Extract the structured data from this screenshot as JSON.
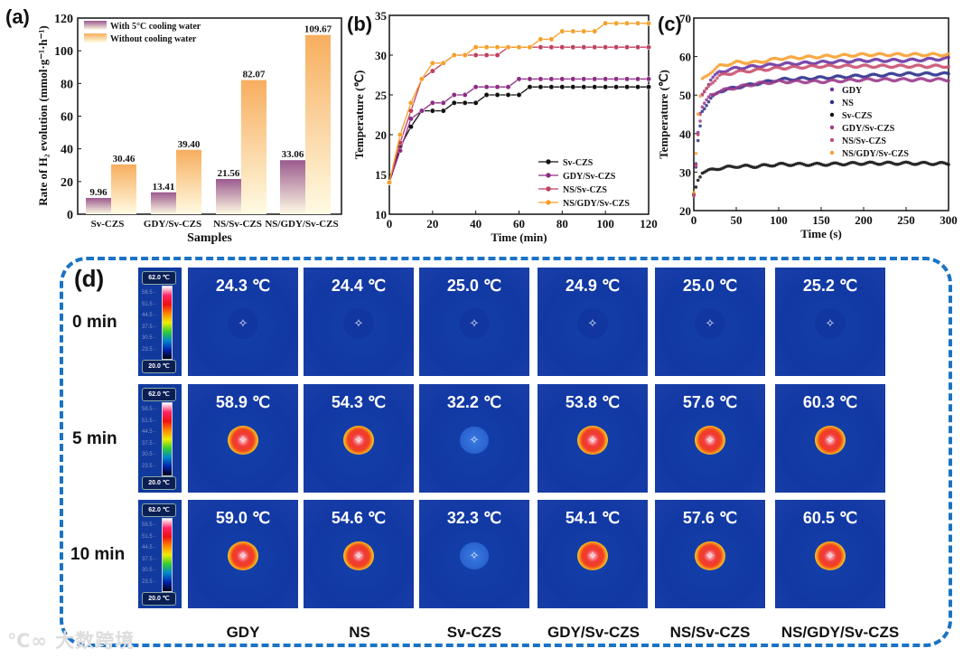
{
  "panels": {
    "a": "(a)",
    "b": "(b)",
    "c": "(c)",
    "d": "(d)"
  },
  "chart_data": [
    {
      "id": "a",
      "type": "bar",
      "categories": [
        "Sv-CZS",
        "GDY/Sv-CZS",
        "NS/Sv-CZS",
        "NS/GDY/Sv-CZS"
      ],
      "series": [
        {
          "name": "With 5°C cooling water",
          "values": [
            9.96,
            13.41,
            21.56,
            33.06
          ],
          "labels": [
            "9.96",
            "13.41",
            "21.56",
            "33.06"
          ],
          "color": "#9b5a8f"
        },
        {
          "name": "Without  cooling water",
          "values": [
            30.46,
            39.4,
            82.07,
            109.67
          ],
          "labels": [
            "30.46",
            "39.40",
            "82.07",
            "109.67"
          ],
          "color": "#f7ae5e"
        }
      ],
      "xlabel": "Samples",
      "ylabel": "Rate of H₂ evolution (mmol·g⁻¹·h⁻¹)",
      "ylim": [
        0,
        120
      ],
      "yticks": [
        "0",
        "20",
        "40",
        "60",
        "80",
        "100",
        "120"
      ],
      "legend": "top-left"
    },
    {
      "id": "b",
      "type": "line",
      "x": [
        0,
        5,
        10,
        15,
        20,
        25,
        30,
        35,
        40,
        45,
        50,
        55,
        60,
        65,
        70,
        75,
        80,
        85,
        90,
        95,
        100,
        105,
        110,
        115,
        120
      ],
      "series": [
        {
          "name": "Sv-CZS",
          "color": "#111111",
          "values": [
            14,
            18.5,
            21,
            23,
            23,
            23,
            24,
            24,
            24,
            25,
            25,
            25,
            25,
            26,
            26,
            26,
            26,
            26,
            26,
            26,
            26,
            26,
            26,
            26,
            26
          ]
        },
        {
          "name": "GDY/Sv-CZS",
          "color": "#8e2c86",
          "values": [
            14,
            18,
            22,
            23,
            24,
            24,
            25,
            25,
            26,
            26,
            26,
            26,
            27,
            27,
            27,
            27,
            27,
            27,
            27,
            27,
            27,
            27,
            27,
            27,
            27
          ]
        },
        {
          "name": "NS/Sv-CZS",
          "color": "#c0405f",
          "values": [
            14,
            19,
            23,
            27,
            28,
            29,
            30,
            30,
            30,
            30,
            30,
            31,
            31,
            31,
            31,
            31,
            31,
            31,
            31,
            31,
            31,
            31,
            31,
            31,
            31
          ]
        },
        {
          "name": "NS/GDY/Sv-CZS",
          "color": "#f5a02a",
          "values": [
            14,
            20,
            24,
            27,
            29,
            29,
            30,
            30,
            31,
            31,
            31,
            31,
            31,
            31,
            32,
            32,
            33,
            33,
            33,
            33,
            34,
            34,
            34,
            34,
            34
          ]
        }
      ],
      "xlabel": "Time (min)",
      "ylabel": "Temperature (℃)",
      "xlim": [
        0,
        120
      ],
      "ylim": [
        10,
        35
      ],
      "xticks": [
        "0",
        "20",
        "40",
        "60",
        "80",
        "100",
        "120"
      ],
      "yticks": [
        "10",
        "15",
        "20",
        "25",
        "30",
        "35"
      ],
      "legend": "bottom-right"
    },
    {
      "id": "c",
      "type": "scatter",
      "x": [
        0,
        5,
        10,
        20,
        30,
        50,
        75,
        100,
        150,
        200,
        250,
        300
      ],
      "series": [
        {
          "name": "GDY",
          "color": "#6a35a0",
          "values": [
            24,
            40,
            50,
            54,
            56,
            57,
            57.5,
            58,
            58.5,
            59,
            59,
            59.5
          ]
        },
        {
          "name": "NS",
          "color": "#2b2f8c",
          "values": [
            24,
            38,
            46,
            49,
            51,
            52,
            53,
            54,
            54.5,
            55,
            55.5,
            55.5
          ]
        },
        {
          "name": "Sv-CZS",
          "color": "#111111",
          "values": [
            24,
            28,
            30,
            30.5,
            31,
            31.5,
            31.5,
            32,
            32,
            32.3,
            32.3,
            32.2
          ]
        },
        {
          "name": "GDY/Sv-CZS",
          "color": "#9b3a8a",
          "values": [
            24,
            40,
            47,
            50,
            51,
            52,
            53,
            53.5,
            53.5,
            54,
            54,
            54
          ]
        },
        {
          "name": "NS/Sv-CZS",
          "color": "#c8506e",
          "values": [
            24,
            40,
            50,
            53,
            55,
            56,
            56.5,
            57,
            57.5,
            57.5,
            57.5,
            57.5
          ]
        },
        {
          "name": "NS/GDY/Sv-CZS",
          "color": "#f7a030",
          "values": [
            25,
            45,
            54,
            56,
            57.5,
            58.5,
            58.5,
            59.5,
            60,
            60.5,
            60.5,
            60.5
          ]
        }
      ],
      "xlabel": "Time (s)",
      "ylabel": "Temperature (℃)",
      "xlim": [
        0,
        300
      ],
      "ylim": [
        20,
        70
      ],
      "xticks": [
        "0",
        "50",
        "100",
        "150",
        "200",
        "250",
        "300"
      ],
      "yticks": [
        "20",
        "30",
        "40",
        "50",
        "60",
        "70"
      ],
      "legend": "right"
    }
  ],
  "thermal": {
    "colorbar": {
      "max": "62.0 ℃",
      "min": "20.0 ℃",
      "ticks": [
        "58.5 -",
        "51.5 -",
        "44.5 -",
        "37.5 -",
        "30.5 -",
        "23.5 -"
      ]
    },
    "rows": [
      "0 min",
      "5 min",
      "10 min"
    ],
    "columns": [
      "GDY",
      "NS",
      "Sv-CZS",
      "GDY/Sv-CZS",
      "NS/Sv-CZS",
      "NS/GDY/Sv-CZS"
    ],
    "temps": [
      [
        "24.3 ℃",
        "24.4 ℃",
        "25.0 ℃",
        "24.9 ℃",
        "25.0 ℃",
        "25.2 ℃"
      ],
      [
        "58.9 ℃",
        "54.3 ℃",
        "32.2 ℃",
        "53.8 ℃",
        "57.6 ℃",
        "60.3 ℃"
      ],
      [
        "59.0 ℃",
        "54.6 ℃",
        "32.3 ℃",
        "54.1 ℃",
        "57.6 ℃",
        "60.5 ℃"
      ]
    ],
    "crosshair_icon": "✧"
  },
  "watermark": "大数跨境"
}
